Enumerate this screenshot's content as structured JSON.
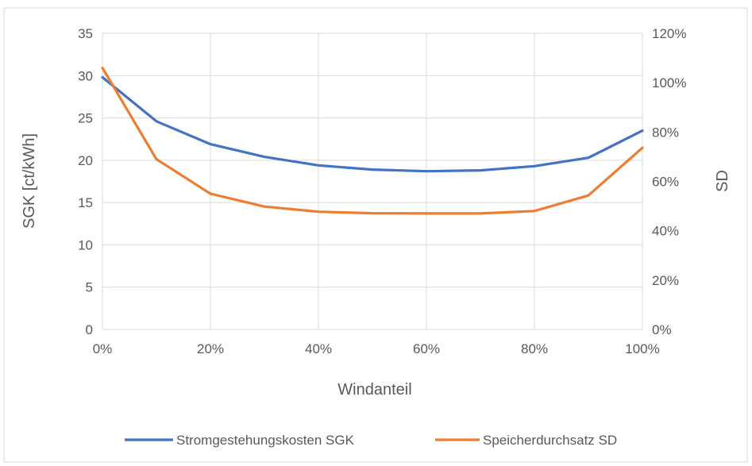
{
  "chart_data": {
    "type": "line",
    "title": "",
    "xlabel": "Windanteil",
    "ylabel": "SGK [ct/kWh]",
    "y2label": "SD",
    "x": [
      0,
      10,
      20,
      30,
      40,
      50,
      60,
      70,
      80,
      90,
      100
    ],
    "x_tick_labels": [
      "0%",
      "20%",
      "40%",
      "60%",
      "80%",
      "100%"
    ],
    "x_tick_values": [
      0,
      20,
      40,
      60,
      80,
      100
    ],
    "xlim": [
      0,
      100
    ],
    "ylim": [
      0,
      35
    ],
    "y_ticks": [
      "0",
      "5",
      "10",
      "15",
      "20",
      "25",
      "30",
      "35"
    ],
    "y_tick_values": [
      0,
      5,
      10,
      15,
      20,
      25,
      30,
      35
    ],
    "y2lim": [
      0,
      120
    ],
    "y2_ticks": [
      "0%",
      "20%",
      "40%",
      "60%",
      "80%",
      "100%",
      "120%"
    ],
    "y2_tick_values": [
      0,
      20,
      40,
      60,
      80,
      100,
      120
    ],
    "grid": true,
    "legend_position": "bottom",
    "series": [
      {
        "name": "Stromgestehungskosten SGK",
        "axis": "left",
        "color": "#4472C4",
        "values": [
          29.8,
          24.6,
          21.9,
          20.4,
          19.4,
          18.9,
          18.7,
          18.8,
          19.3,
          20.3,
          23.5
        ]
      },
      {
        "name": "Speicherdurchsatz SD",
        "axis": "right",
        "color": "#ED7D31",
        "values": [
          106,
          69,
          55,
          49.8,
          47.7,
          47.1,
          47.0,
          47.0,
          48.0,
          54.3,
          73.6
        ]
      }
    ]
  }
}
